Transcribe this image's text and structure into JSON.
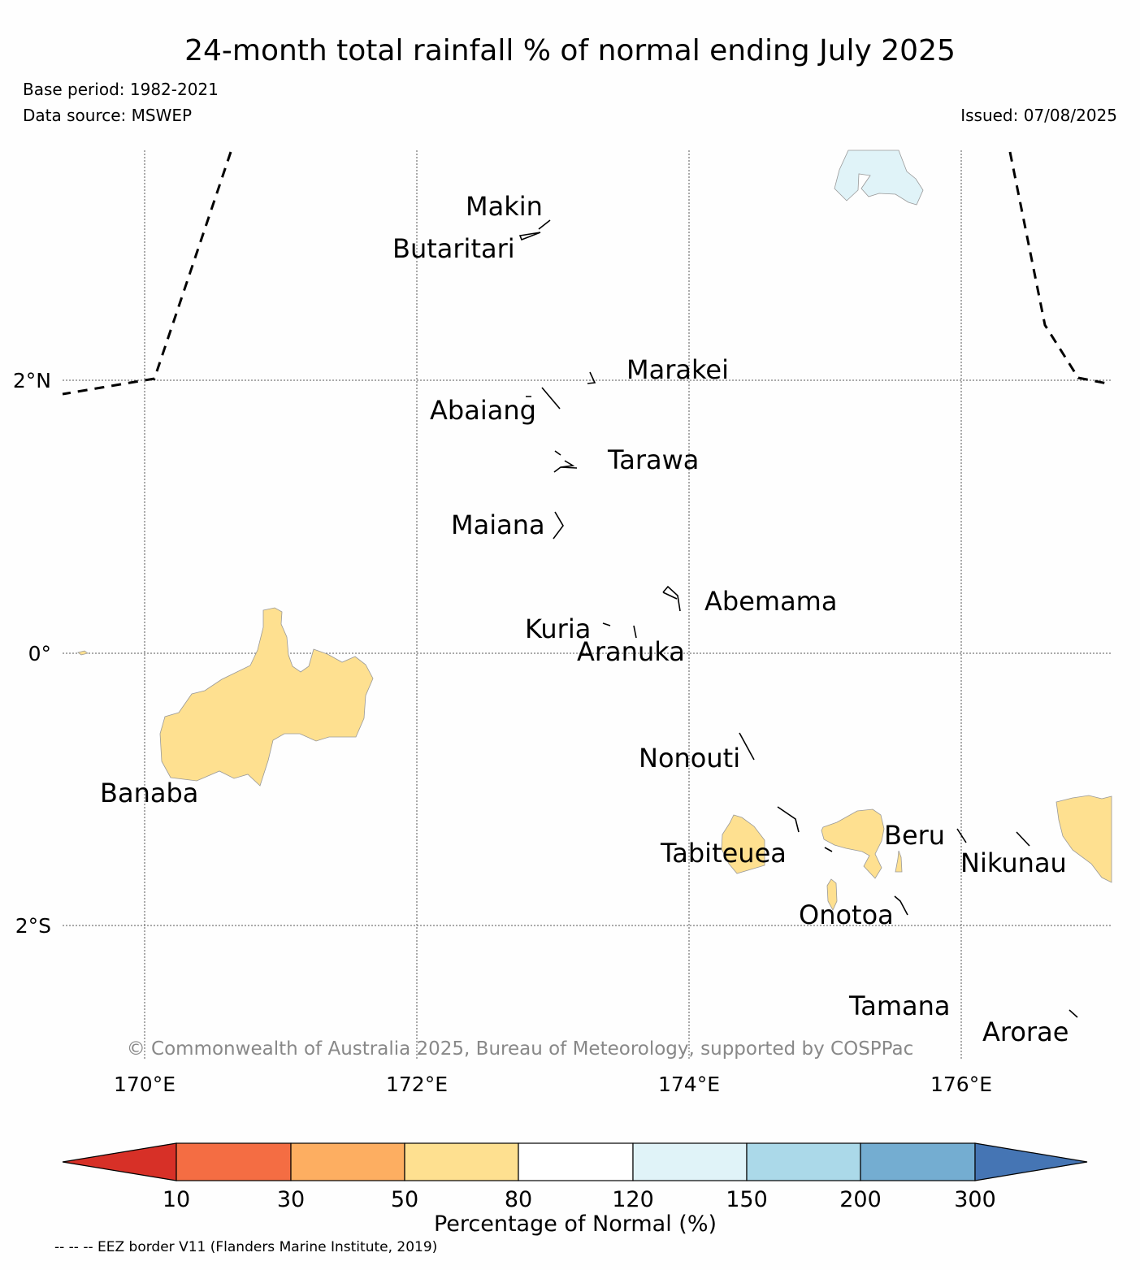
{
  "header": {
    "title": "24-month total rainfall % of normal ending July 2025",
    "base_period": "Base period: 1982-2021",
    "data_source": "Data source: MSWEP",
    "issued": "Issued: 07/08/2025"
  },
  "map": {
    "lon_ticks": [
      "170°E",
      "172°E",
      "174°E",
      "176°E"
    ],
    "lat_ticks": [
      "2°N",
      "0°",
      "2°S"
    ],
    "islands": {
      "makin": "Makin",
      "butaritari": "Butaritari",
      "marakei": "Marakei",
      "abaiang": "Abaiang",
      "tarawa": "Tarawa",
      "maiana": "Maiana",
      "abemama": "Abemama",
      "kuria": "Kuria",
      "aranuka": "Aranuka",
      "nonouti": "Nonouti",
      "banaba": "Banaba",
      "tabiteuea": "Tabiteuea",
      "beru": "Beru",
      "nikunau": "Nikunau",
      "onotoa": "Onotoa",
      "tamana": "Tamana",
      "arorae": "Arorae"
    },
    "copyright": "© Commonwealth of Australia 2025, Bureau of Meteorology, supported by COSPPac",
    "region_colors": {
      "below_normal_50_80": "#fee090",
      "above_normal_120_150": "#e0f3f8"
    }
  },
  "colorbar": {
    "ticks": [
      "10",
      "30",
      "50",
      "80",
      "120",
      "150",
      "200",
      "300"
    ],
    "colors": [
      "#d73027",
      "#f46d43",
      "#fdae61",
      "#fee090",
      "#ffffff",
      "#e0f3f8",
      "#abd9e9",
      "#74add1",
      "#4575b4"
    ],
    "label": "Percentage of Normal (%)"
  },
  "footer": {
    "eez_note": "-- -- -- EEZ border V11 (Flanders Marine Institute, 2019)"
  }
}
